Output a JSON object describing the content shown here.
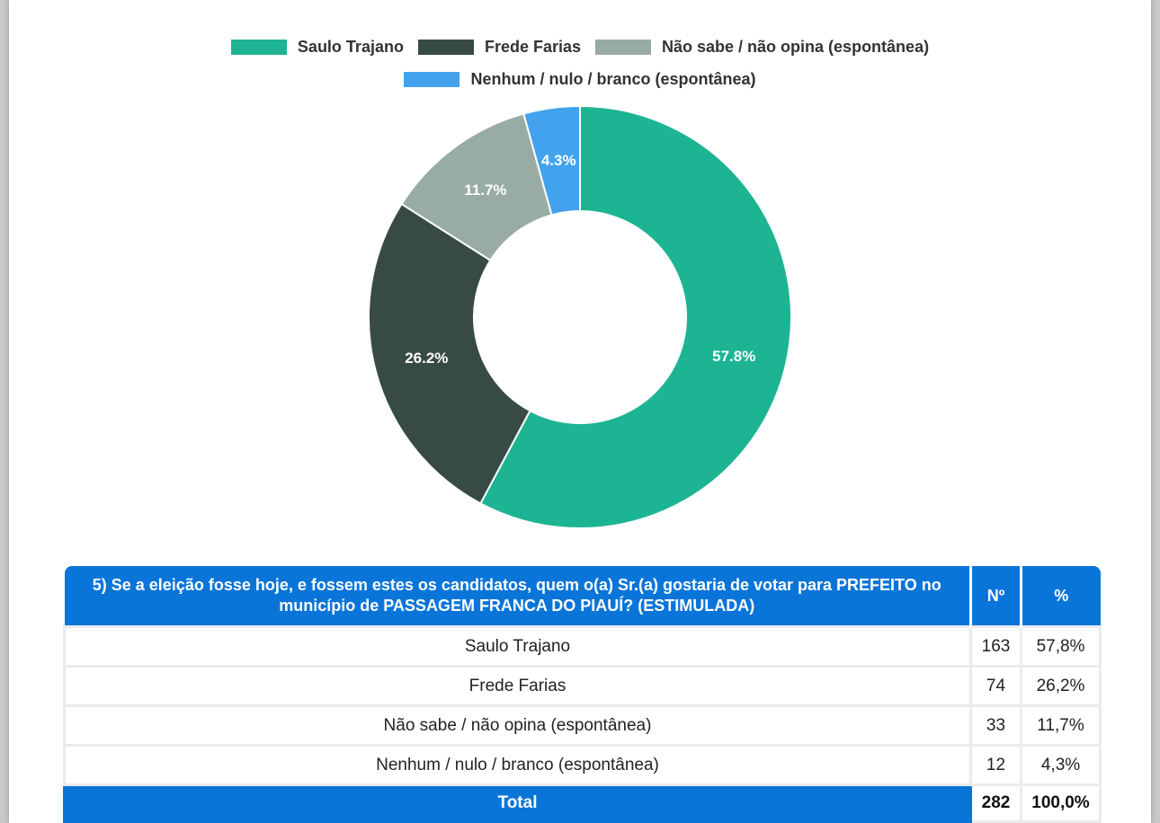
{
  "chart_data": {
    "type": "pie",
    "donut": true,
    "categories": [
      "Saulo Trajano",
      "Frede Farias",
      "Não sabe / não opina (espontânea)",
      "Nenhum / nulo / branco (espontânea)"
    ],
    "values": [
      57.8,
      26.2,
      11.7,
      4.3
    ],
    "data_labels": [
      "57.8%",
      "26.2%",
      "11.7%",
      "4.3%"
    ],
    "colors": [
      "#1db493",
      "#374b44",
      "#98aca4",
      "#42a2ed"
    ],
    "legend_position": "top"
  },
  "table": {
    "question": "5) Se a eleição fosse hoje, e fossem estes os candidatos, quem o(a) Sr.(a) gostaria de votar para PREFEITO no município de PASSAGEM FRANCA DO PIAUÍ? (ESTIMULADA)",
    "col_n": "Nº",
    "col_pct": "%",
    "rows": [
      {
        "label": "Saulo Trajano",
        "n": "163",
        "pct": "57,8%"
      },
      {
        "label": "Frede Farias",
        "n": "74",
        "pct": "26,2%"
      },
      {
        "label": "Não sabe / não opina (espontânea)",
        "n": "33",
        "pct": "11,7%"
      },
      {
        "label": "Nenhum / nulo / branco (espontânea)",
        "n": "12",
        "pct": "4,3%"
      }
    ],
    "total": {
      "label": "Total",
      "n": "282",
      "pct": "100,0%"
    }
  }
}
